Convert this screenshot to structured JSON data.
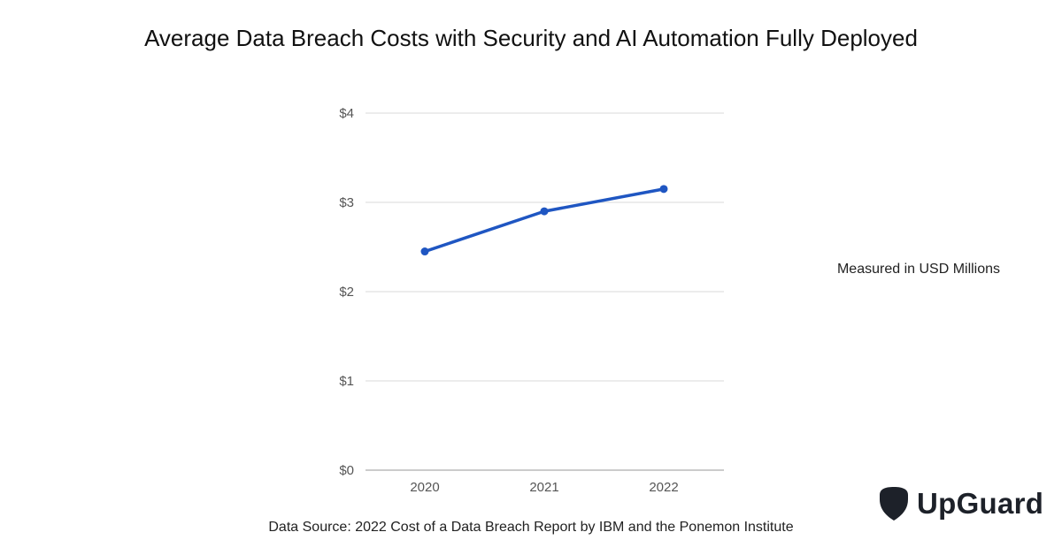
{
  "chart_data": {
    "type": "line",
    "title": "Average Data Breach Costs with Security and AI Automation Fully Deployed",
    "categories": [
      "2020",
      "2021",
      "2022"
    ],
    "series": [
      {
        "values": [
          2.45,
          2.9,
          3.15
        ],
        "color": "#1f56c2"
      }
    ],
    "ylim": [
      0,
      4
    ],
    "yticks": [
      0,
      1,
      2,
      3,
      4
    ],
    "ytick_labels": [
      "$0",
      "$1",
      "$2",
      "$3",
      "$4"
    ],
    "grid": true,
    "annotation": "Measured in USD Millions"
  },
  "footer": {
    "source": "Data Source: 2022 Cost of a Data Breach Report by IBM and the Ponemon Institute"
  },
  "brand": {
    "name": "UpGuard",
    "logo_icon": "shield-icon",
    "color": "#1d2129"
  }
}
